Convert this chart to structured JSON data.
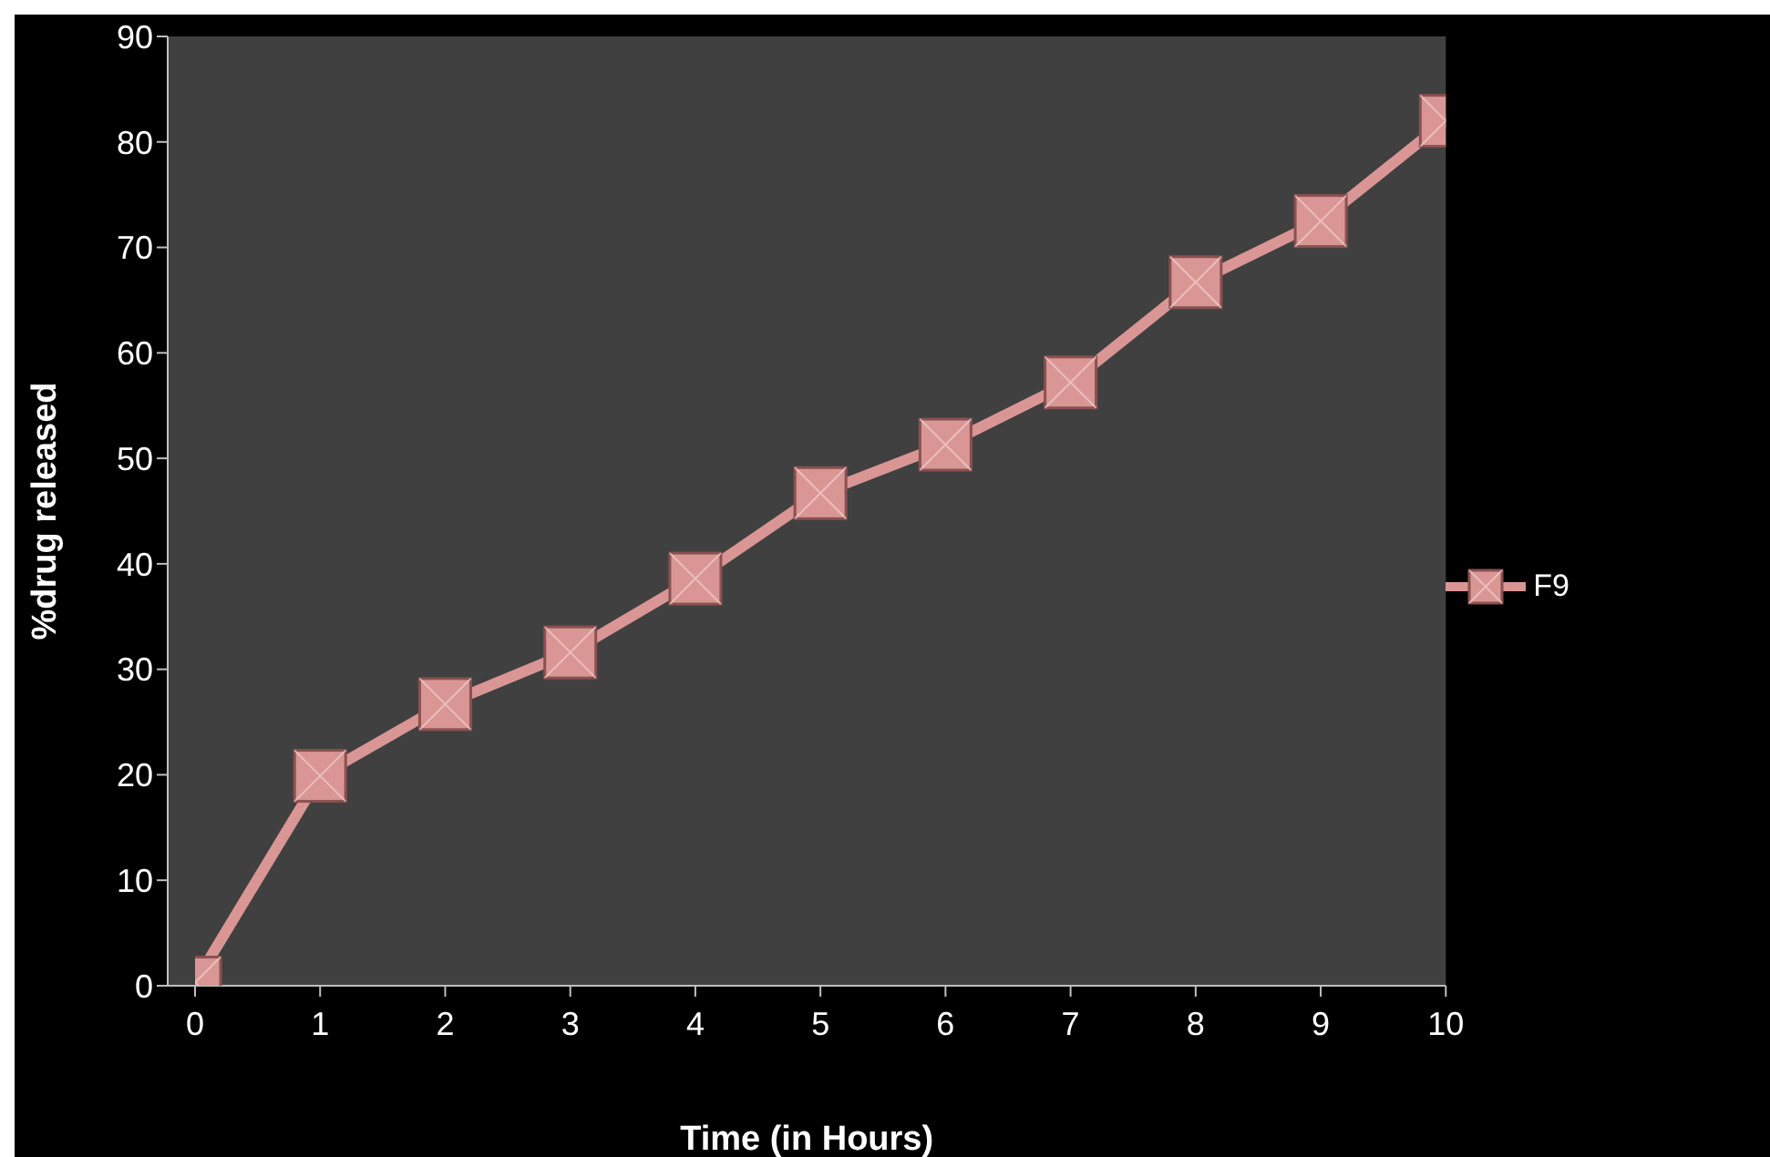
{
  "chart_data": {
    "type": "line",
    "xlabel": "Time (in Hours)",
    "ylabel": "%drug  released",
    "categories": [
      "0",
      "1",
      "2",
      "3",
      "4",
      "5",
      "6",
      "7",
      "8",
      "9",
      "10"
    ],
    "series": [
      {
        "name": "F9",
        "color": "#d99694",
        "values": [
          0.3,
          19.9,
          26.7,
          31.6,
          38.6,
          46.7,
          51.3,
          57.2,
          66.7,
          72.5,
          82
        ]
      }
    ],
    "ylim": [
      0,
      90
    ],
    "yticks": [
      0,
      10,
      20,
      30,
      40,
      50,
      60,
      70,
      80,
      90
    ],
    "grid": false,
    "legend": "right",
    "marker": "square",
    "line_style": "solid"
  }
}
